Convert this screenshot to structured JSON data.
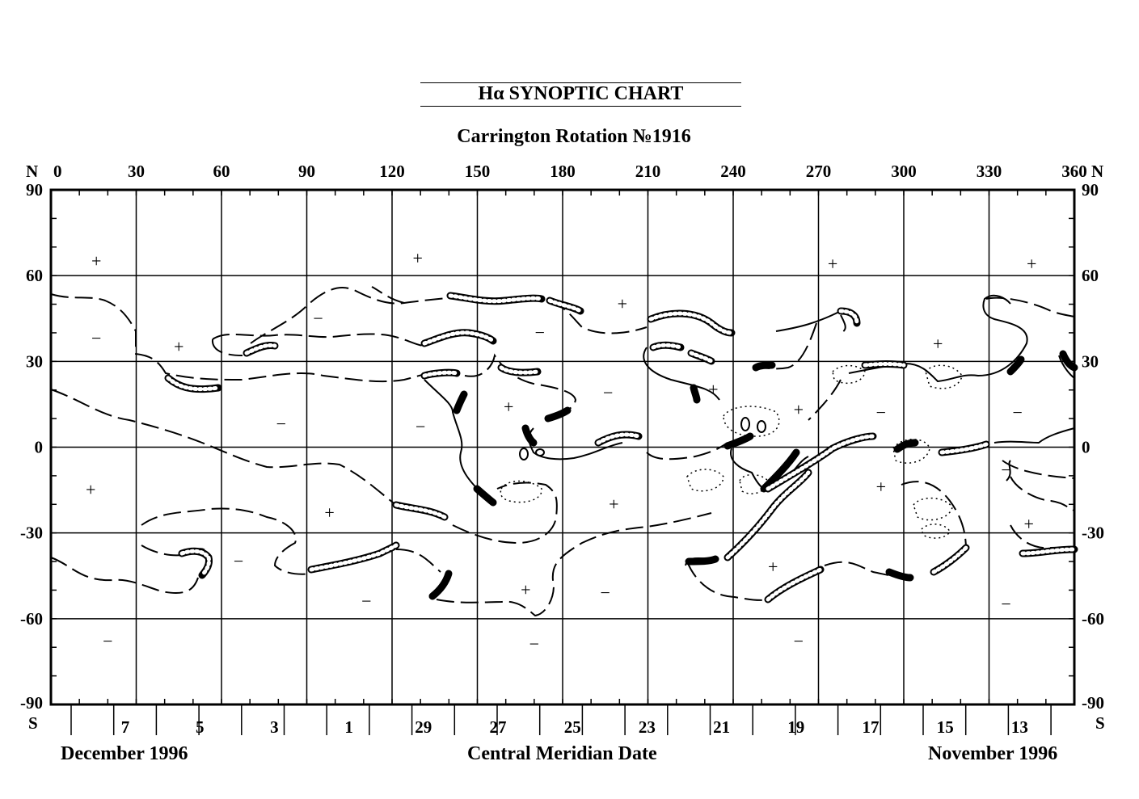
{
  "title": "Hα  SYNOPTIC CHART",
  "subtitle": "Carrington  Rotation   №1916",
  "north_label": "N",
  "south_label": "S",
  "longitude_ticks": [
    "0",
    "30",
    "60",
    "90",
    "120",
    "150",
    "180",
    "210",
    "240",
    "270",
    "300",
    "330",
    "360"
  ],
  "latitude_ticks": [
    "90",
    "60",
    "30",
    "0",
    "-30",
    "-60",
    "-90"
  ],
  "date_labels": [
    "7",
    "5",
    "3",
    "1",
    "29",
    "27",
    "25",
    "23",
    "21",
    "19",
    "17",
    "15",
    "13"
  ],
  "footer": {
    "left": "December 1996",
    "center": "Central Meridian Date",
    "right": "November 1996"
  },
  "polarity_signs": [
    {
      "s": "+",
      "lon": 16,
      "lat": 65
    },
    {
      "s": "+",
      "lon": 129,
      "lat": 66
    },
    {
      "s": "+",
      "lon": 275,
      "lat": 64
    },
    {
      "s": "+",
      "lon": 345,
      "lat": 64
    },
    {
      "s": "−",
      "lon": 16,
      "lat": 38
    },
    {
      "s": "−",
      "lon": 94,
      "lat": 45
    },
    {
      "s": "−",
      "lon": 172,
      "lat": 40
    },
    {
      "s": "+",
      "lon": 201,
      "lat": 50
    },
    {
      "s": "+",
      "lon": 45,
      "lat": 35
    },
    {
      "s": "+",
      "lon": 312,
      "lat": 36
    },
    {
      "s": "+",
      "lon": 233,
      "lat": 20
    },
    {
      "s": "−",
      "lon": 196,
      "lat": 19
    },
    {
      "s": "+",
      "lon": 161,
      "lat": 14
    },
    {
      "s": "+",
      "lon": 263,
      "lat": 13
    },
    {
      "s": "−",
      "lon": 292,
      "lat": 12
    },
    {
      "s": "−",
      "lon": 340,
      "lat": 12
    },
    {
      "s": "−",
      "lon": 81,
      "lat": 8
    },
    {
      "s": "−",
      "lon": 130,
      "lat": 7
    },
    {
      "s": "+",
      "lon": 14,
      "lat": -15
    },
    {
      "s": "+",
      "lon": 292,
      "lat": -14
    },
    {
      "s": "−",
      "lon": 336,
      "lat": -8
    },
    {
      "s": "+",
      "lon": 98,
      "lat": -23
    },
    {
      "s": "+",
      "lon": 198,
      "lat": -20
    },
    {
      "s": "+",
      "lon": 344,
      "lat": -27
    },
    {
      "s": "−",
      "lon": 66,
      "lat": -40
    },
    {
      "s": "+",
      "lon": 254,
      "lat": -42
    },
    {
      "s": "−",
      "lon": 111,
      "lat": -54
    },
    {
      "s": "+",
      "lon": 167,
      "lat": -50
    },
    {
      "s": "−",
      "lon": 195,
      "lat": -51
    },
    {
      "s": "−",
      "lon": 336,
      "lat": -55
    },
    {
      "s": "−",
      "lon": 20,
      "lat": -68
    },
    {
      "s": "−",
      "lon": 170,
      "lat": -69
    },
    {
      "s": "−",
      "lon": 263,
      "lat": -68
    }
  ],
  "colors": {
    "ink": "#000000",
    "background": "#ffffff"
  }
}
